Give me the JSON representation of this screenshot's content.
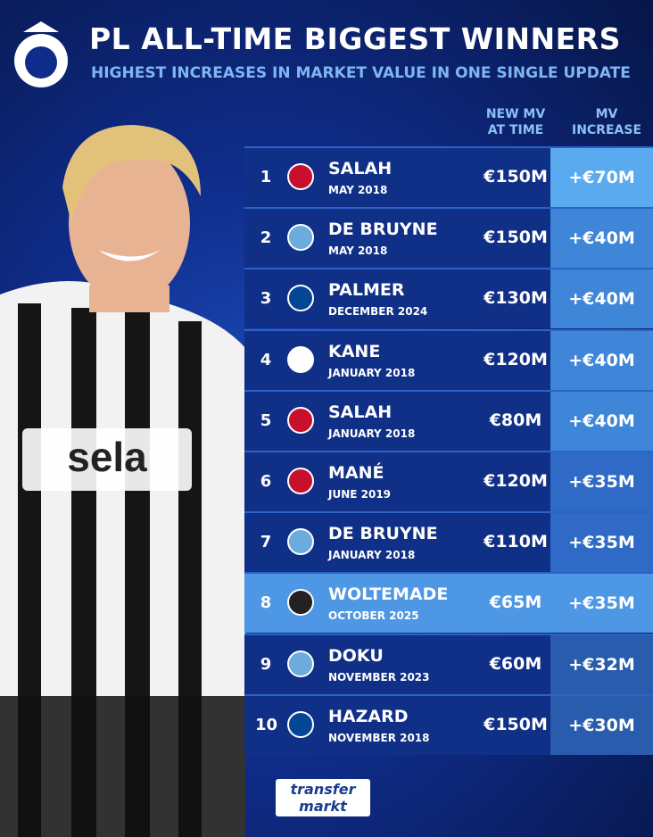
{
  "header": {
    "title": "PL ALL-TIME BIGGEST WINNERS",
    "subtitle": "HIGHEST INCREASES IN MARKET VALUE IN ONE SINGLE UPDATE"
  },
  "table": {
    "columns": [
      "NEW MV AT TIME",
      "MV INCREASE"
    ],
    "rows": [
      {
        "rank": "1",
        "name": "SALAH",
        "date": "MAY 2018",
        "new_mv": "€150M",
        "increase": "+€70M"
      },
      {
        "rank": "2",
        "name": "DE BRUYNE",
        "date": "MAY 2018",
        "new_mv": "€150M",
        "increase": "+€40M"
      },
      {
        "rank": "3",
        "name": "PALMER",
        "date": "DECEMBER 2024",
        "new_mv": "€130M",
        "increase": "+€40M"
      },
      {
        "rank": "4",
        "name": "KANE",
        "date": "JANUARY 2018",
        "new_mv": "€120M",
        "increase": "+€40M"
      },
      {
        "rank": "5",
        "name": "SALAH",
        "date": "JANUARY 2018",
        "new_mv": "€80M",
        "increase": "+€40M"
      },
      {
        "rank": "6",
        "name": "MANÉ",
        "date": "JUNE 2019",
        "new_mv": "€120M",
        "increase": "+€35M"
      },
      {
        "rank": "7",
        "name": "DE BRUYNE",
        "date": "JANUARY 2018",
        "new_mv": "€110M",
        "increase": "+€35M"
      },
      {
        "rank": "8",
        "name": "WOLTEMADE",
        "date": "OCTOBER 2025",
        "new_mv": "€65M",
        "increase": "+€35M"
      },
      {
        "rank": "9",
        "name": "DOKU",
        "date": "NOVEMBER 2023",
        "new_mv": "€60M",
        "increase": "+€32M"
      },
      {
        "rank": "10",
        "name": "HAZARD",
        "date": "NOVEMBER 2018",
        "new_mv": "€150M",
        "increase": "+€30M"
      }
    ]
  },
  "footer": {
    "logo_top": "transfer",
    "logo_bottom": "markt"
  }
}
